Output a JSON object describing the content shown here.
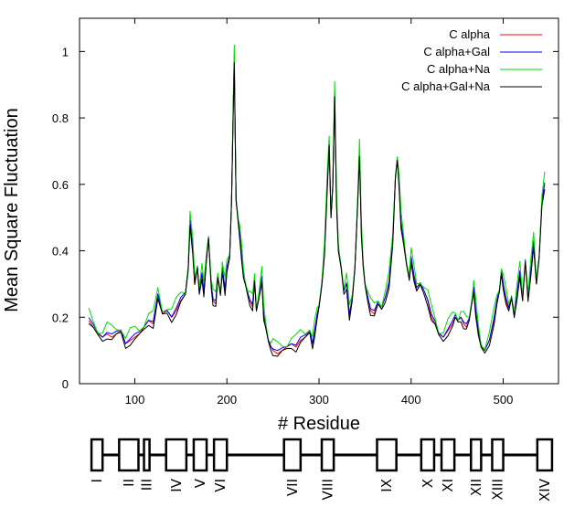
{
  "chart_data": {
    "type": "line",
    "title": "",
    "xlabel": "# Residue",
    "ylabel": "Mean Square Fluctuation",
    "xlim": [
      40,
      560
    ],
    "ylim": [
      0,
      1.1
    ],
    "x_ticks": [
      100,
      200,
      300,
      400,
      500
    ],
    "y_ticks": [
      0,
      0.2,
      0.4,
      0.6,
      0.8,
      1
    ],
    "x_tick_labels": [
      "100",
      "200",
      "300",
      "400",
      "500"
    ],
    "y_tick_labels": [
      "0",
      "0.2",
      "0.4",
      "0.6",
      "0.8",
      "1"
    ],
    "grid": false,
    "legend_position": "top-right",
    "series": [
      {
        "name": "C alpha",
        "color": "#ff0000",
        "offset": 0.0
      },
      {
        "name": "C alpha+Gal",
        "color": "#0000ff",
        "offset": 0.005
      },
      {
        "name": "C alpha+Na",
        "color": "#00dd00",
        "offset": 0.02
      },
      {
        "name": "C alpha+Gal+Na",
        "color": "#000000",
        "offset": -0.008
      }
    ],
    "profile": [
      [
        50,
        0.19
      ],
      [
        55,
        0.17
      ],
      [
        60,
        0.15
      ],
      [
        65,
        0.14
      ],
      [
        70,
        0.15
      ],
      [
        75,
        0.14
      ],
      [
        80,
        0.15
      ],
      [
        85,
        0.16
      ],
      [
        90,
        0.12
      ],
      [
        95,
        0.13
      ],
      [
        100,
        0.14
      ],
      [
        105,
        0.15
      ],
      [
        110,
        0.17
      ],
      [
        115,
        0.19
      ],
      [
        120,
        0.18
      ],
      [
        125,
        0.26
      ],
      [
        130,
        0.21
      ],
      [
        135,
        0.22
      ],
      [
        140,
        0.2
      ],
      [
        145,
        0.22
      ],
      [
        150,
        0.25
      ],
      [
        155,
        0.27
      ],
      [
        158,
        0.35
      ],
      [
        160,
        0.49
      ],
      [
        163,
        0.4
      ],
      [
        165,
        0.3
      ],
      [
        168,
        0.35
      ],
      [
        170,
        0.28
      ],
      [
        173,
        0.33
      ],
      [
        175,
        0.27
      ],
      [
        178,
        0.38
      ],
      [
        180,
        0.44
      ],
      [
        183,
        0.3
      ],
      [
        185,
        0.25
      ],
      [
        188,
        0.24
      ],
      [
        190,
        0.32
      ],
      [
        193,
        0.27
      ],
      [
        195,
        0.35
      ],
      [
        198,
        0.28
      ],
      [
        200,
        0.34
      ],
      [
        203,
        0.38
      ],
      [
        205,
        0.55
      ],
      [
        207,
        0.85
      ],
      [
        208,
        0.98
      ],
      [
        209,
        0.75
      ],
      [
        210,
        0.55
      ],
      [
        212,
        0.5
      ],
      [
        214,
        0.45
      ],
      [
        216,
        0.38
      ],
      [
        218,
        0.32
      ],
      [
        220,
        0.3
      ],
      [
        223,
        0.27
      ],
      [
        225,
        0.25
      ],
      [
        228,
        0.23
      ],
      [
        230,
        0.31
      ],
      [
        232,
        0.22
      ],
      [
        235,
        0.27
      ],
      [
        238,
        0.32
      ],
      [
        240,
        0.2
      ],
      [
        242,
        0.17
      ],
      [
        245,
        0.13
      ],
      [
        248,
        0.11
      ],
      [
        250,
        0.1
      ],
      [
        255,
        0.09
      ],
      [
        260,
        0.1
      ],
      [
        265,
        0.11
      ],
      [
        270,
        0.12
      ],
      [
        275,
        0.11
      ],
      [
        280,
        0.13
      ],
      [
        285,
        0.14
      ],
      [
        290,
        0.16
      ],
      [
        293,
        0.12
      ],
      [
        295,
        0.15
      ],
      [
        298,
        0.2
      ],
      [
        300,
        0.23
      ],
      [
        303,
        0.3
      ],
      [
        306,
        0.4
      ],
      [
        309,
        0.6
      ],
      [
        311,
        0.72
      ],
      [
        313,
        0.5
      ],
      [
        315,
        0.6
      ],
      [
        317,
        0.88
      ],
      [
        319,
        0.55
      ],
      [
        321,
        0.4
      ],
      [
        324,
        0.35
      ],
      [
        327,
        0.28
      ],
      [
        330,
        0.3
      ],
      [
        333,
        0.2
      ],
      [
        336,
        0.25
      ],
      [
        339,
        0.35
      ],
      [
        342,
        0.55
      ],
      [
        344,
        0.7
      ],
      [
        346,
        0.45
      ],
      [
        348,
        0.35
      ],
      [
        350,
        0.3
      ],
      [
        353,
        0.26
      ],
      [
        356,
        0.22
      ],
      [
        360,
        0.21
      ],
      [
        364,
        0.24
      ],
      [
        368,
        0.23
      ],
      [
        372,
        0.26
      ],
      [
        376,
        0.3
      ],
      [
        380,
        0.42
      ],
      [
        383,
        0.62
      ],
      [
        385,
        0.68
      ],
      [
        387,
        0.6
      ],
      [
        389,
        0.48
      ],
      [
        392,
        0.42
      ],
      [
        395,
        0.36
      ],
      [
        398,
        0.32
      ],
      [
        400,
        0.38
      ],
      [
        403,
        0.32
      ],
      [
        406,
        0.28
      ],
      [
        410,
        0.3
      ],
      [
        414,
        0.28
      ],
      [
        418,
        0.25
      ],
      [
        422,
        0.2
      ],
      [
        426,
        0.18
      ],
      [
        430,
        0.15
      ],
      [
        435,
        0.14
      ],
      [
        440,
        0.16
      ],
      [
        445,
        0.18
      ],
      [
        448,
        0.2
      ],
      [
        451,
        0.19
      ],
      [
        454,
        0.2
      ],
      [
        457,
        0.18
      ],
      [
        460,
        0.17
      ],
      [
        463,
        0.19
      ],
      [
        466,
        0.25
      ],
      [
        468,
        0.29
      ],
      [
        470,
        0.22
      ],
      [
        473,
        0.15
      ],
      [
        476,
        0.11
      ],
      [
        480,
        0.1
      ],
      [
        485,
        0.13
      ],
      [
        490,
        0.19
      ],
      [
        493,
        0.24
      ],
      [
        496,
        0.28
      ],
      [
        498,
        0.34
      ],
      [
        500,
        0.3
      ],
      [
        503,
        0.25
      ],
      [
        506,
        0.22
      ],
      [
        509,
        0.26
      ],
      [
        512,
        0.21
      ],
      [
        515,
        0.27
      ],
      [
        518,
        0.33
      ],
      [
        521,
        0.25
      ],
      [
        524,
        0.37
      ],
      [
        527,
        0.26
      ],
      [
        530,
        0.34
      ],
      [
        533,
        0.42
      ],
      [
        536,
        0.3
      ],
      [
        539,
        0.38
      ],
      [
        542,
        0.55
      ],
      [
        545,
        0.6
      ]
    ],
    "secondary_structure": {
      "segments": [
        {
          "label": "I",
          "start": 53,
          "end": 65
        },
        {
          "label": "II",
          "start": 83,
          "end": 104
        },
        {
          "label": "III",
          "start": 110,
          "end": 116
        },
        {
          "label": "IV",
          "start": 134,
          "end": 156
        },
        {
          "label": "V",
          "start": 164,
          "end": 178
        },
        {
          "label": "VI",
          "start": 186,
          "end": 200
        },
        {
          "label": "VII",
          "start": 262,
          "end": 280
        },
        {
          "label": "VIII",
          "start": 303,
          "end": 316
        },
        {
          "label": "IX",
          "start": 363,
          "end": 384
        },
        {
          "label": "X",
          "start": 411,
          "end": 425
        },
        {
          "label": "XI",
          "start": 433,
          "end": 447
        },
        {
          "label": "XII",
          "start": 465,
          "end": 476
        },
        {
          "label": "XIII",
          "start": 488,
          "end": 500
        },
        {
          "label": "XIV",
          "start": 537,
          "end": 553
        }
      ],
      "line_start": 53,
      "line_end": 553
    }
  }
}
